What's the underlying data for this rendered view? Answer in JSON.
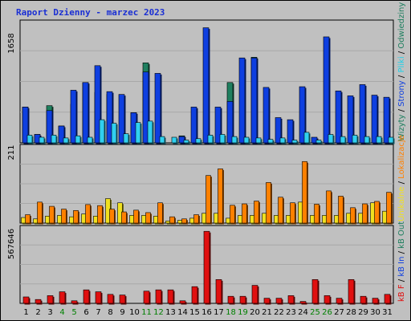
{
  "title": "Raport Dzienny -  marzec 2023",
  "colors": {
    "title": "#1a2fd4",
    "weekday": "#000000",
    "weekend": "#008000",
    "wizyty": "#1f7f5f",
    "strony": "#0e3fe0",
    "pliki": "#1fd0e8",
    "odwiedziny": "#30d0f0",
    "lokalizacje": "#ff8000",
    "unikalne": "#f0e020",
    "kb": "#e01010"
  },
  "chart_data": [
    {
      "type": "bar",
      "panel": "top",
      "y_max_label": "1658",
      "ylim": [
        0,
        1658
      ],
      "legend": [
        "Wizyty",
        "Strony",
        "Pliki",
        "Odwiedziny"
      ],
      "categories": [
        "1",
        "2",
        "3",
        "4",
        "5",
        "6",
        "7",
        "8",
        "9",
        "10",
        "11",
        "12",
        "13",
        "14",
        "15",
        "16",
        "17",
        "18",
        "19",
        "20",
        "21",
        "22",
        "23",
        "24",
        "25",
        "26",
        "27",
        "28",
        "29",
        "30",
        "31"
      ],
      "weekend_days": [
        "4",
        "5",
        "11",
        "12",
        "18",
        "19",
        "25",
        "26"
      ],
      "series": [
        {
          "name": "Wizyty",
          "values": [
            510,
            120,
            530,
            240,
            550,
            860,
            720,
            690,
            0,
            430,
            1140,
            0,
            0,
            100,
            0,
            0,
            0,
            860,
            0,
            1220,
            0,
            0,
            0,
            0,
            0,
            0,
            0,
            0,
            0,
            0,
            0
          ]
        },
        {
          "name": "Strony",
          "values": [
            510,
            120,
            460,
            240,
            750,
            860,
            1100,
            730,
            690,
            430,
            1010,
            990,
            0,
            90,
            510,
            1640,
            510,
            590,
            1210,
            1210,
            790,
            360,
            330,
            800,
            80,
            1510,
            740,
            670,
            830,
            680,
            650
          ]
        },
        {
          "name": "Pliki",
          "values": [
            110,
            80,
            110,
            70,
            100,
            80,
            330,
            280,
            130,
            290,
            310,
            90,
            80,
            40,
            0,
            0,
            0,
            0,
            0,
            0,
            0,
            0,
            0,
            150,
            0,
            0,
            0,
            0,
            0,
            0,
            0
          ]
        },
        {
          "name": "Odwiedziny",
          "values": [
            110,
            80,
            110,
            70,
            100,
            80,
            330,
            280,
            130,
            290,
            310,
            90,
            80,
            40,
            60,
            110,
            120,
            90,
            80,
            70,
            50,
            70,
            40,
            150,
            40,
            120,
            90,
            110,
            90,
            90,
            80
          ]
        }
      ]
    },
    {
      "type": "bar",
      "panel": "middle",
      "y_max_label": "211",
      "ylim": [
        0,
        211
      ],
      "legend": [
        "Lokalizacje",
        "Unikalne"
      ],
      "categories": [
        "1",
        "2",
        "3",
        "4",
        "5",
        "6",
        "7",
        "8",
        "9",
        "10",
        "11",
        "12",
        "13",
        "14",
        "15",
        "16",
        "17",
        "18",
        "19",
        "20",
        "21",
        "22",
        "23",
        "24",
        "25",
        "26",
        "27",
        "28",
        "29",
        "30",
        "31"
      ],
      "series": [
        {
          "name": "Lokalizacje",
          "values": [
            24,
            60,
            48,
            40,
            36,
            53,
            50,
            40,
            32,
            37,
            30,
            58,
            18,
            12,
            24,
            136,
            155,
            51,
            55,
            63,
            116,
            74,
            58,
            176,
            54,
            92,
            77,
            44,
            55,
            62,
            88
          ]
        },
        {
          "name": "Unikalne",
          "values": [
            16,
            12,
            20,
            22,
            18,
            26,
            20,
            70,
            58,
            22,
            22,
            20,
            6,
            8,
            14,
            28,
            28,
            14,
            22,
            22,
            28,
            22,
            22,
            60,
            22,
            22,
            22,
            28,
            28,
            58,
            34
          ]
        }
      ]
    },
    {
      "type": "bar",
      "panel": "bottom",
      "y_max_label": "567646",
      "ylim": [
        0,
        567646
      ],
      "legend": [
        "kB F",
        "kB In",
        "kB Out"
      ],
      "categories": [
        "1",
        "2",
        "3",
        "4",
        "5",
        "6",
        "7",
        "8",
        "9",
        "10",
        "11",
        "12",
        "13",
        "14",
        "15",
        "16",
        "17",
        "18",
        "19",
        "20",
        "21",
        "22",
        "23",
        "24",
        "25",
        "26",
        "27",
        "28",
        "29",
        "30",
        "31"
      ],
      "series": [
        {
          "name": "kB F",
          "values": [
            50000,
            30000,
            60000,
            90000,
            20000,
            105000,
            90000,
            70000,
            65000,
            0,
            95000,
            105000,
            105000,
            20000,
            130000,
            560000,
            185000,
            55000,
            55000,
            140000,
            40000,
            40000,
            60000,
            15000,
            185000,
            60000,
            40000,
            185000,
            55000,
            40000,
            70000
          ]
        }
      ]
    }
  ]
}
